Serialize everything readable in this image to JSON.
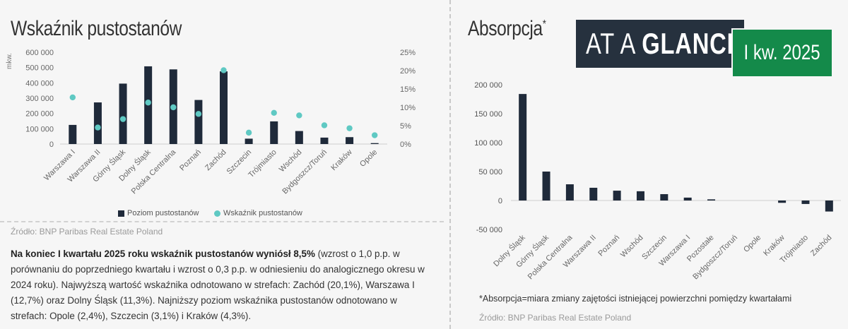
{
  "left": {
    "title": "Wskaźnik pustostanów",
    "y_unit": "mkw.",
    "legend": {
      "bars": "Poziom pustostanów",
      "dots": "Wskaźnik pustostanów"
    },
    "source": "Źródło: BNP Paribas Real Estate Poland",
    "paragraph": {
      "bold": "Na koniec I kwartału 2025 roku wskaźnik pustostanów wyniósł 8,5%",
      "rest": " (wzrost o 1,0 p.p. w porównaniu do poprzedniego kwartału i wzrost o 0,3 p.p. w odniesieniu do analogicznego okresu w 2024 roku). Najwyższą wartość wskaźnika odnotowano w strefach: Zachód (20,1%), Warszawa I (12,7%) oraz Dolny Śląsk (11,3%). Najniższy poziom wskaźnika pustostanów odnotowano w strefach: Opole (2,4%), Szczecin (3,1%) i Kraków (4,3%)."
    }
  },
  "right": {
    "title": "Absorpcja",
    "title_mark": "*",
    "badge_main_light": "AT A ",
    "badge_main_bold": "GLANCE",
    "badge_period": "I kw. 2025",
    "footnote": "*Absorpcja=miara zmiany zajętości istniejącej powierzchni pomiędzy kwartałami",
    "source": "Źródło: BNP Paribas Real Estate Poland"
  },
  "chart_data": [
    {
      "type": "bar",
      "categories": [
        "Warszawa I",
        "Warszawa II",
        "Górny Śląsk",
        "Dolny Śląsk",
        "Polska Centralna",
        "Poznań",
        "Zachód",
        "Szczecin",
        "Trójmiasto",
        "Wschód",
        "Bydgoszcz/Toruń",
        "Kraków",
        "Opole"
      ],
      "series": [
        {
          "name": "Poziom pustostanów",
          "type": "bar",
          "axis": "left",
          "values": [
            125000,
            272000,
            395000,
            508000,
            488000,
            288000,
            475000,
            35000,
            148000,
            85000,
            42000,
            45000,
            6000
          ]
        },
        {
          "name": "Wskaźnik pustostanów",
          "type": "scatter",
          "axis": "right",
          "values": [
            12.7,
            4.5,
            6.8,
            11.3,
            10.0,
            8.2,
            20.1,
            3.1,
            8.5,
            7.8,
            5.1,
            4.3,
            2.4
          ]
        }
      ],
      "ylim": [
        0,
        600000
      ],
      "yticks": [
        "0",
        "100 000",
        "200 000",
        "300 000",
        "400 000",
        "500 000",
        "600 000"
      ],
      "ylabel": "mkw.",
      "y2lim": [
        0,
        25
      ],
      "y2ticks": [
        "0%",
        "5%",
        "10%",
        "15%",
        "20%",
        "25%"
      ],
      "legend_position": "bottom",
      "colors": {
        "bars": "#1f2a3a",
        "dots": "#5fc9c3"
      }
    },
    {
      "type": "bar",
      "categories": [
        "Dolny Śląsk",
        "Górny Śląsk",
        "Polska Centralna",
        "Warszawa II",
        "Poznań",
        "Wschód",
        "Szczecin",
        "Warszawa I",
        "Pozostałe",
        "Bydgoszcz/Toruń",
        "Opole",
        "Kraków",
        "Trójmiasto",
        "Zachód"
      ],
      "values": [
        184000,
        50000,
        28000,
        22000,
        17000,
        16000,
        11000,
        5000,
        2000,
        0,
        0,
        -4000,
        -6000,
        -19000
      ],
      "ylim": [
        -50000,
        200000
      ],
      "yticks": [
        "-50 000",
        "0",
        "50 000",
        "100 000",
        "150 000",
        "200 000"
      ],
      "colors": {
        "bars": "#1f2a3a"
      }
    }
  ]
}
